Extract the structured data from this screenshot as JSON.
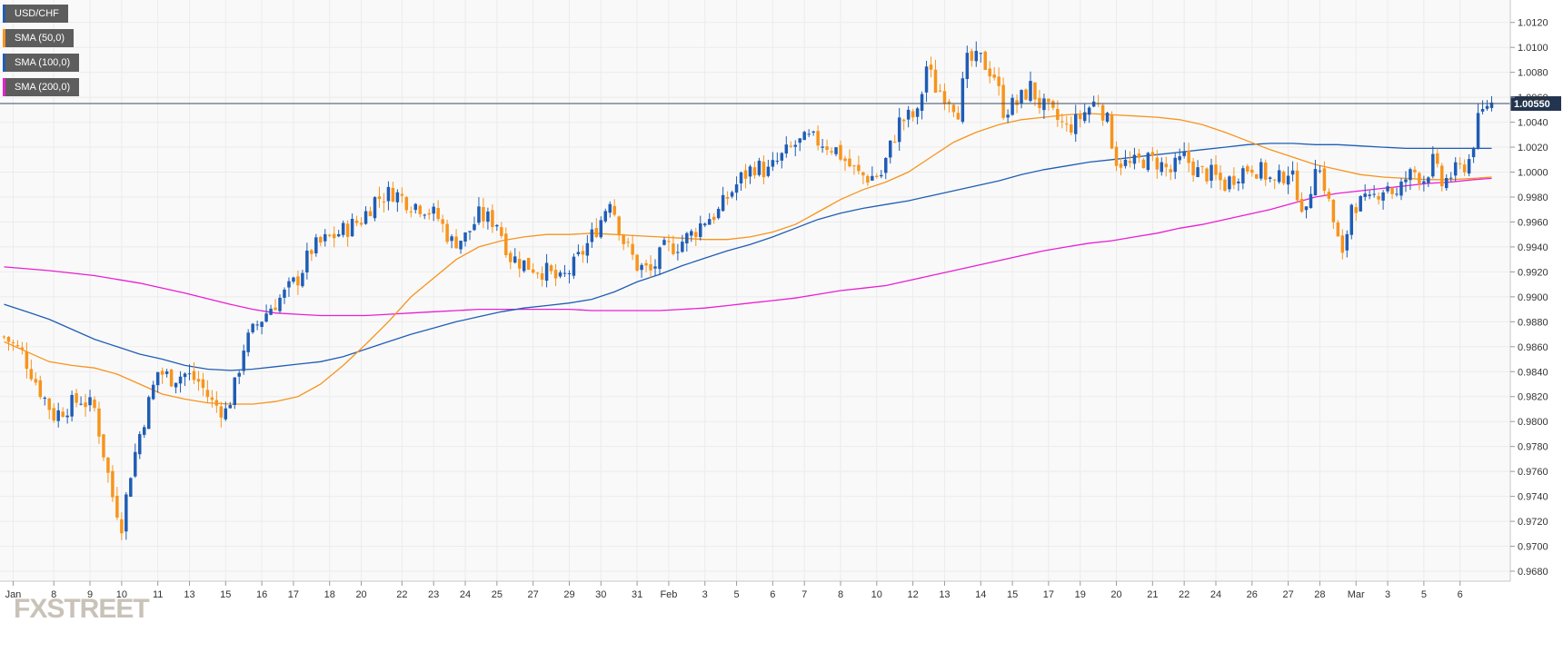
{
  "chart_data": {
    "type": "candlestick",
    "symbol": "USD/CHF",
    "colors": {
      "up": "#1f5db5",
      "down": "#f7941d",
      "sma50": "#f7941d",
      "sma100": "#1f5db5",
      "sma200": "#e91ed3",
      "price_line": "#3a4a63",
      "price_label_bg": "#22344f",
      "grid": "#ececec",
      "plot_bg": "#f9f9f9"
    },
    "legend": [
      {
        "label": "USD/CHF",
        "color": "#1f5db5"
      },
      {
        "label": "SMA (50,0)",
        "color": "#f7941d"
      },
      {
        "label": "SMA (100,0)",
        "color": "#1f5db5"
      },
      {
        "label": "SMA (200,0)",
        "color": "#e91ed3"
      }
    ],
    "y_axis": {
      "range": [
        0.9672,
        1.0138
      ],
      "ticks": [
        "0.9680",
        "0.9700",
        "0.9720",
        "0.9740",
        "0.9760",
        "0.9780",
        "0.9800",
        "0.9820",
        "0.9840",
        "0.9860",
        "0.9880",
        "0.9900",
        "0.9920",
        "0.9940",
        "0.9960",
        "0.9980",
        "1.0000",
        "1.0020",
        "1.0040",
        "1.0060",
        "1.0080",
        "1.0100",
        "1.0120"
      ],
      "position": "right"
    },
    "x_axis": {
      "bar_count": 330,
      "ticks": [
        {
          "label": "Jan",
          "bar": 2
        },
        {
          "label": "8",
          "bar": 11
        },
        {
          "label": "9",
          "bar": 19
        },
        {
          "label": "10",
          "bar": 26
        },
        {
          "label": "11",
          "bar": 34
        },
        {
          "label": "13",
          "bar": 41
        },
        {
          "label": "15",
          "bar": 49
        },
        {
          "label": "16",
          "bar": 57
        },
        {
          "label": "17",
          "bar": 64
        },
        {
          "label": "18",
          "bar": 72
        },
        {
          "label": "20",
          "bar": 79
        },
        {
          "label": "22",
          "bar": 88
        },
        {
          "label": "23",
          "bar": 95
        },
        {
          "label": "24",
          "bar": 102
        },
        {
          "label": "25",
          "bar": 109
        },
        {
          "label": "27",
          "bar": 117
        },
        {
          "label": "29",
          "bar": 125
        },
        {
          "label": "30",
          "bar": 132
        },
        {
          "label": "31",
          "bar": 140
        },
        {
          "label": "Feb",
          "bar": 147
        },
        {
          "label": "3",
          "bar": 155
        },
        {
          "label": "5",
          "bar": 162
        },
        {
          "label": "6",
          "bar": 170
        },
        {
          "label": "7",
          "bar": 177
        },
        {
          "label": "8",
          "bar": 185
        },
        {
          "label": "10",
          "bar": 193
        },
        {
          "label": "12",
          "bar": 201
        },
        {
          "label": "13",
          "bar": 208
        },
        {
          "label": "14",
          "bar": 216
        },
        {
          "label": "15",
          "bar": 223
        },
        {
          "label": "17",
          "bar": 231
        },
        {
          "label": "19",
          "bar": 238
        },
        {
          "label": "20",
          "bar": 246
        },
        {
          "label": "21",
          "bar": 254
        },
        {
          "label": "22",
          "bar": 261
        },
        {
          "label": "24",
          "bar": 268
        },
        {
          "label": "26",
          "bar": 276
        },
        {
          "label": "27",
          "bar": 284
        },
        {
          "label": "28",
          "bar": 291
        },
        {
          "label": "Mar",
          "bar": 299
        },
        {
          "label": "3",
          "bar": 306
        },
        {
          "label": "5",
          "bar": 314
        },
        {
          "label": "6",
          "bar": 322
        }
      ]
    },
    "current_price": {
      "value": 1.0055,
      "label": "1.00550"
    },
    "price_path": [
      [
        0,
        0.9868
      ],
      [
        4,
        0.9855
      ],
      [
        8,
        0.9825
      ],
      [
        11,
        0.9805
      ],
      [
        14,
        0.9812
      ],
      [
        17,
        0.9818
      ],
      [
        20,
        0.981
      ],
      [
        22,
        0.9775
      ],
      [
        24,
        0.974
      ],
      [
        26,
        0.9718
      ],
      [
        28,
        0.976
      ],
      [
        30,
        0.979
      ],
      [
        32,
        0.9815
      ],
      [
        34,
        0.984
      ],
      [
        37,
        0.9835
      ],
      [
        40,
        0.9838
      ],
      [
        43,
        0.9832
      ],
      [
        46,
        0.9815
      ],
      [
        49,
        0.9808
      ],
      [
        51,
        0.9828
      ],
      [
        53,
        0.986
      ],
      [
        56,
        0.9878
      ],
      [
        59,
        0.9892
      ],
      [
        62,
        0.9902
      ],
      [
        65,
        0.9915
      ],
      [
        68,
        0.9938
      ],
      [
        71,
        0.9945
      ],
      [
        75,
        0.9953
      ],
      [
        79,
        0.9962
      ],
      [
        82,
        0.9978
      ],
      [
        86,
        0.9984
      ],
      [
        90,
        0.9975
      ],
      [
        93,
        0.9972
      ],
      [
        96,
        0.9963
      ],
      [
        99,
        0.9944
      ],
      [
        102,
        0.9948
      ],
      [
        105,
        0.9965
      ],
      [
        109,
        0.996
      ],
      [
        112,
        0.9932
      ],
      [
        116,
        0.9925
      ],
      [
        120,
        0.992
      ],
      [
        123,
        0.9912
      ],
      [
        126,
        0.9925
      ],
      [
        129,
        0.9942
      ],
      [
        132,
        0.9962
      ],
      [
        134,
        0.998
      ],
      [
        137,
        0.9945
      ],
      [
        140,
        0.9925
      ],
      [
        143,
        0.992
      ],
      [
        146,
        0.9938
      ],
      [
        149,
        0.9942
      ],
      [
        152,
        0.995
      ],
      [
        155,
        0.9962
      ],
      [
        158,
        0.9968
      ],
      [
        160,
        0.998
      ],
      [
        163,
        0.9995
      ],
      [
        166,
        1.0005
      ],
      [
        169,
        1.0
      ],
      [
        172,
        1.0012
      ],
      [
        175,
        1.0022
      ],
      [
        178,
        1.0026
      ],
      [
        181,
        1.0024
      ],
      [
        184,
        1.0018
      ],
      [
        187,
        1.0005
      ],
      [
        189,
        0.9998
      ],
      [
        191,
        0.9996
      ],
      [
        194,
        0.9998
      ],
      [
        196,
        1.002
      ],
      [
        198,
        1.004
      ],
      [
        200,
        1.0044
      ],
      [
        202,
        1.0045
      ],
      [
        204,
        1.0085
      ],
      [
        206,
        1.0068
      ],
      [
        209,
        1.006
      ],
      [
        211,
        1.005
      ],
      [
        213,
        1.0088
      ],
      [
        216,
        1.009
      ],
      [
        219,
        1.0078
      ],
      [
        221,
        1.005
      ],
      [
        224,
        1.0055
      ],
      [
        227,
        1.0068
      ],
      [
        229,
        1.0055
      ],
      [
        232,
        1.0045
      ],
      [
        235,
        1.0035
      ],
      [
        237,
        1.004
      ],
      [
        240,
        1.0052
      ],
      [
        242,
        1.0058
      ],
      [
        244,
        1.004
      ],
      [
        246,
        1.001
      ],
      [
        249,
        1.0005
      ],
      [
        252,
        1.001
      ],
      [
        255,
        1.0008
      ],
      [
        258,
        1.0
      ],
      [
        261,
        1.0012
      ],
      [
        264,
        1.0
      ],
      [
        267,
        0.9998
      ],
      [
        270,
        0.999
      ],
      [
        273,
        1.0
      ],
      [
        276,
        1.0005
      ],
      [
        279,
        0.9998
      ],
      [
        281,
        0.999
      ],
      [
        284,
        1.0002
      ],
      [
        286,
        0.9985
      ],
      [
        288,
        0.9965
      ],
      [
        290,
        1.001
      ],
      [
        292,
        0.999
      ],
      [
        294,
        0.996
      ],
      [
        296,
        0.993
      ],
      [
        298,
        0.9975
      ],
      [
        300,
        0.9975
      ],
      [
        302,
        0.9975
      ],
      [
        304,
        0.9985
      ],
      [
        306,
        0.999
      ],
      [
        308,
        0.998
      ],
      [
        310,
        0.9995
      ],
      [
        312,
        1.0
      ],
      [
        314,
        0.9995
      ],
      [
        316,
        1.0008
      ],
      [
        318,
        0.999
      ],
      [
        320,
        0.9998
      ],
      [
        322,
        1.0002
      ],
      [
        324,
        1.001
      ],
      [
        326,
        1.004
      ],
      [
        328,
        1.0055
      ]
    ],
    "sma50": [
      [
        0,
        0.9864
      ],
      [
        5,
        0.9856
      ],
      [
        10,
        0.9848
      ],
      [
        15,
        0.9845
      ],
      [
        20,
        0.9843
      ],
      [
        25,
        0.9838
      ],
      [
        30,
        0.983
      ],
      [
        35,
        0.9822
      ],
      [
        40,
        0.9818
      ],
      [
        45,
        0.9815
      ],
      [
        50,
        0.9814
      ],
      [
        55,
        0.9814
      ],
      [
        60,
        0.9816
      ],
      [
        65,
        0.982
      ],
      [
        70,
        0.983
      ],
      [
        75,
        0.9845
      ],
      [
        80,
        0.9862
      ],
      [
        85,
        0.988
      ],
      [
        90,
        0.99
      ],
      [
        95,
        0.9915
      ],
      [
        100,
        0.993
      ],
      [
        105,
        0.994
      ],
      [
        110,
        0.9945
      ],
      [
        115,
        0.9948
      ],
      [
        120,
        0.995
      ],
      [
        125,
        0.995
      ],
      [
        130,
        0.9951
      ],
      [
        135,
        0.995
      ],
      [
        140,
        0.9949
      ],
      [
        145,
        0.9948
      ],
      [
        150,
        0.9947
      ],
      [
        155,
        0.9946
      ],
      [
        160,
        0.9946
      ],
      [
        165,
        0.9948
      ],
      [
        170,
        0.9952
      ],
      [
        175,
        0.9958
      ],
      [
        180,
        0.9968
      ],
      [
        185,
        0.9978
      ],
      [
        190,
        0.9986
      ],
      [
        195,
        0.9992
      ],
      [
        200,
        1.0
      ],
      [
        205,
        1.0012
      ],
      [
        210,
        1.0024
      ],
      [
        215,
        1.0032
      ],
      [
        220,
        1.0038
      ],
      [
        225,
        1.0042
      ],
      [
        230,
        1.0044
      ],
      [
        235,
        1.0046
      ],
      [
        240,
        1.0047
      ],
      [
        245,
        1.0046
      ],
      [
        250,
        1.0045
      ],
      [
        255,
        1.0044
      ],
      [
        260,
        1.0042
      ],
      [
        265,
        1.0038
      ],
      [
        270,
        1.0032
      ],
      [
        275,
        1.0025
      ],
      [
        280,
        1.0018
      ],
      [
        285,
        1.0012
      ],
      [
        290,
        1.0006
      ],
      [
        295,
        1.0002
      ],
      [
        300,
        0.9998
      ],
      [
        305,
        0.9996
      ],
      [
        310,
        0.9995
      ],
      [
        315,
        0.9994
      ],
      [
        320,
        0.9994
      ],
      [
        325,
        0.9995
      ],
      [
        329,
        0.9996
      ]
    ],
    "sma100": [
      [
        0,
        0.9894
      ],
      [
        5,
        0.9888
      ],
      [
        10,
        0.9882
      ],
      [
        15,
        0.9874
      ],
      [
        20,
        0.9866
      ],
      [
        25,
        0.986
      ],
      [
        30,
        0.9854
      ],
      [
        35,
        0.985
      ],
      [
        40,
        0.9845
      ],
      [
        45,
        0.9842
      ],
      [
        50,
        0.9841
      ],
      [
        55,
        0.9842
      ],
      [
        60,
        0.9844
      ],
      [
        65,
        0.9846
      ],
      [
        70,
        0.9848
      ],
      [
        75,
        0.9852
      ],
      [
        80,
        0.9858
      ],
      [
        85,
        0.9864
      ],
      [
        90,
        0.987
      ],
      [
        95,
        0.9875
      ],
      [
        100,
        0.988
      ],
      [
        105,
        0.9884
      ],
      [
        110,
        0.9888
      ],
      [
        115,
        0.9891
      ],
      [
        120,
        0.9893
      ],
      [
        125,
        0.9895
      ],
      [
        130,
        0.9898
      ],
      [
        135,
        0.9904
      ],
      [
        140,
        0.9912
      ],
      [
        145,
        0.9918
      ],
      [
        150,
        0.9925
      ],
      [
        155,
        0.9931
      ],
      [
        160,
        0.9937
      ],
      [
        165,
        0.9942
      ],
      [
        170,
        0.9948
      ],
      [
        175,
        0.9955
      ],
      [
        180,
        0.9962
      ],
      [
        185,
        0.9967
      ],
      [
        190,
        0.9971
      ],
      [
        195,
        0.9974
      ],
      [
        200,
        0.9977
      ],
      [
        205,
        0.9981
      ],
      [
        210,
        0.9985
      ],
      [
        215,
        0.9989
      ],
      [
        220,
        0.9993
      ],
      [
        225,
        0.9998
      ],
      [
        230,
        1.0002
      ],
      [
        235,
        1.0005
      ],
      [
        240,
        1.0008
      ],
      [
        245,
        1.001
      ],
      [
        250,
        1.0012
      ],
      [
        255,
        1.0014
      ],
      [
        260,
        1.0016
      ],
      [
        265,
        1.0018
      ],
      [
        270,
        1.002
      ],
      [
        275,
        1.0022
      ],
      [
        280,
        1.0023
      ],
      [
        285,
        1.0023
      ],
      [
        290,
        1.0022
      ],
      [
        295,
        1.0022
      ],
      [
        300,
        1.0021
      ],
      [
        305,
        1.002
      ],
      [
        310,
        1.0019
      ],
      [
        315,
        1.0019
      ],
      [
        320,
        1.0019
      ],
      [
        325,
        1.0019
      ],
      [
        329,
        1.0019
      ]
    ],
    "sma200": [
      [
        0,
        0.9924
      ],
      [
        10,
        0.9921
      ],
      [
        20,
        0.9917
      ],
      [
        30,
        0.9911
      ],
      [
        40,
        0.9903
      ],
      [
        50,
        0.9894
      ],
      [
        55,
        0.989
      ],
      [
        60,
        0.9887
      ],
      [
        65,
        0.9886
      ],
      [
        70,
        0.9885
      ],
      [
        75,
        0.9885
      ],
      [
        80,
        0.9885
      ],
      [
        85,
        0.9886
      ],
      [
        90,
        0.9887
      ],
      [
        95,
        0.9888
      ],
      [
        100,
        0.9889
      ],
      [
        105,
        0.989
      ],
      [
        110,
        0.989
      ],
      [
        115,
        0.989
      ],
      [
        120,
        0.989
      ],
      [
        125,
        0.989
      ],
      [
        130,
        0.9889
      ],
      [
        135,
        0.9889
      ],
      [
        140,
        0.9889
      ],
      [
        145,
        0.9889
      ],
      [
        150,
        0.989
      ],
      [
        155,
        0.9891
      ],
      [
        160,
        0.9893
      ],
      [
        165,
        0.9895
      ],
      [
        170,
        0.9897
      ],
      [
        175,
        0.9899
      ],
      [
        180,
        0.9902
      ],
      [
        185,
        0.9905
      ],
      [
        190,
        0.9907
      ],
      [
        195,
        0.9909
      ],
      [
        200,
        0.9913
      ],
      [
        205,
        0.9917
      ],
      [
        210,
        0.9921
      ],
      [
        215,
        0.9925
      ],
      [
        220,
        0.9929
      ],
      [
        225,
        0.9933
      ],
      [
        230,
        0.9937
      ],
      [
        235,
        0.994
      ],
      [
        240,
        0.9943
      ],
      [
        245,
        0.9945
      ],
      [
        250,
        0.9948
      ],
      [
        255,
        0.9951
      ],
      [
        260,
        0.9955
      ],
      [
        265,
        0.9958
      ],
      [
        270,
        0.9962
      ],
      [
        275,
        0.9966
      ],
      [
        280,
        0.997
      ],
      [
        285,
        0.9975
      ],
      [
        290,
        0.998
      ],
      [
        295,
        0.9983
      ],
      [
        300,
        0.9985
      ],
      [
        305,
        0.9987
      ],
      [
        310,
        0.9989
      ],
      [
        315,
        0.9991
      ],
      [
        320,
        0.9992
      ],
      [
        325,
        0.9994
      ],
      [
        329,
        0.9995
      ]
    ],
    "grid": true
  },
  "watermark": {
    "text": "FXSTREET"
  }
}
